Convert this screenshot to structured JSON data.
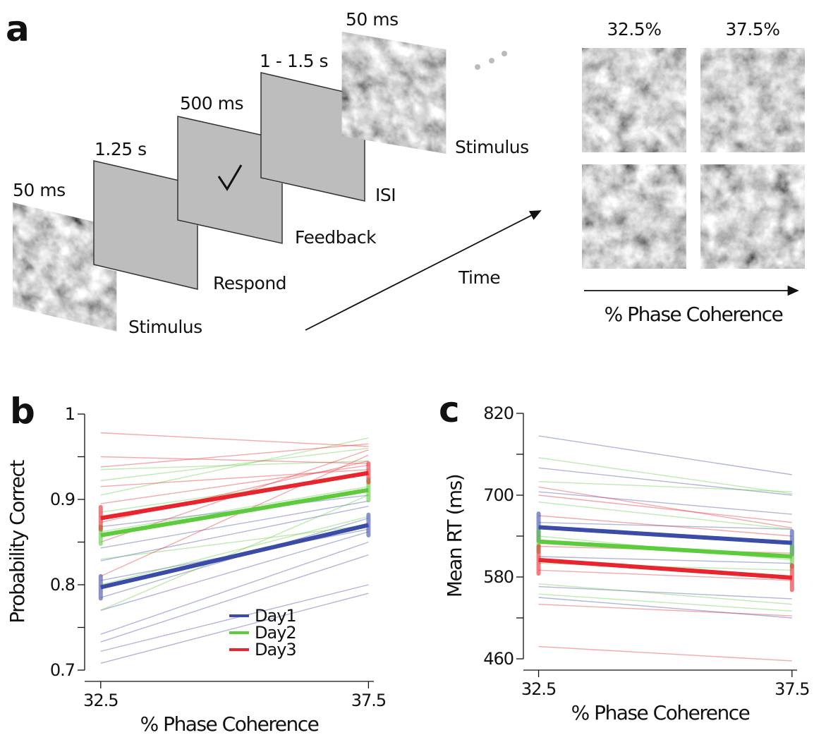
{
  "diagram": {
    "panel_label": "a",
    "frames": [
      {
        "duration": "50 ms",
        "label": "Stimulus"
      },
      {
        "duration": "1.25 s",
        "label": "Respond"
      },
      {
        "duration": "500 ms",
        "label": "Feedback"
      },
      {
        "duration": "1 - 1.5 s",
        "label": "ISI"
      },
      {
        "duration": "50 ms",
        "label": "Stimulus"
      }
    ],
    "time_label": "Time",
    "coherence_levels": [
      "32.5%",
      "37.5%"
    ],
    "coherence_axis": "% Phase Coherence"
  },
  "chart_data": [
    {
      "type": "line",
      "panel_label": "b",
      "ylabel": "Probability Correct",
      "xlabel": "% Phase Coherence",
      "x": [
        32.5,
        37.5
      ],
      "xlim": [
        32.2,
        37.6
      ],
      "xticks": [
        32.5,
        37.5
      ],
      "ylim": [
        0.7,
        1
      ],
      "yticks": [
        0.7,
        0.8,
        0.9,
        1
      ],
      "yminor": [
        0.75,
        0.85,
        0.95
      ],
      "legend": "lower right",
      "series": [
        {
          "name": "Day1",
          "color": "#3b4ba8",
          "values": [
            0.797,
            0.87
          ],
          "errors": [
            0.013,
            0.012
          ]
        },
        {
          "name": "Day2",
          "color": "#5ccb3c",
          "values": [
            0.858,
            0.911
          ],
          "errors": [
            0.01,
            0.012
          ]
        },
        {
          "name": "Day3",
          "color": "#e8252d",
          "values": [
            0.878,
            0.931
          ],
          "errors": [
            0.013,
            0.011
          ]
        }
      ],
      "subjects": [
        {
          "color": "#3b4ba8",
          "values": [
            0.708,
            0.79
          ]
        },
        {
          "color": "#3b4ba8",
          "values": [
            0.722,
            0.8
          ]
        },
        {
          "color": "#3b4ba8",
          "values": [
            0.733,
            0.835
          ]
        },
        {
          "color": "#3b4ba8",
          "values": [
            0.742,
            0.85
          ]
        },
        {
          "color": "#3b4ba8",
          "values": [
            0.77,
            0.862
          ]
        },
        {
          "color": "#3b4ba8",
          "values": [
            0.785,
            0.878
          ]
        },
        {
          "color": "#3b4ba8",
          "values": [
            0.805,
            0.865
          ]
        },
        {
          "color": "#3b4ba8",
          "values": [
            0.828,
            0.892
          ]
        },
        {
          "color": "#3b4ba8",
          "values": [
            0.843,
            0.898
          ]
        },
        {
          "color": "#3b4ba8",
          "values": [
            0.868,
            0.905
          ]
        },
        {
          "color": "#5ccb3c",
          "values": [
            0.77,
            0.905
          ]
        },
        {
          "color": "#5ccb3c",
          "values": [
            0.8,
            0.88
          ]
        },
        {
          "color": "#5ccb3c",
          "values": [
            0.83,
            0.87
          ]
        },
        {
          "color": "#5ccb3c",
          "values": [
            0.862,
            0.915
          ]
        },
        {
          "color": "#5ccb3c",
          "values": [
            0.885,
            0.93
          ]
        },
        {
          "color": "#5ccb3c",
          "values": [
            0.905,
            0.972
          ]
        },
        {
          "color": "#5ccb3c",
          "values": [
            0.922,
            0.96
          ]
        },
        {
          "color": "#5ccb3c",
          "values": [
            0.935,
            0.945
          ]
        },
        {
          "color": "#e8252d",
          "values": [
            0.81,
            0.952
          ]
        },
        {
          "color": "#e8252d",
          "values": [
            0.85,
            0.958
          ]
        },
        {
          "color": "#e8252d",
          "values": [
            0.873,
            0.945
          ]
        },
        {
          "color": "#e8252d",
          "values": [
            0.895,
            0.94
          ]
        },
        {
          "color": "#e8252d",
          "values": [
            0.915,
            0.935
          ]
        },
        {
          "color": "#e8252d",
          "values": [
            0.938,
            0.965
          ]
        },
        {
          "color": "#e8252d",
          "values": [
            0.95,
            0.942
          ]
        },
        {
          "color": "#e8252d",
          "values": [
            0.978,
            0.962
          ]
        }
      ]
    },
    {
      "type": "line",
      "panel_label": "c",
      "ylabel": "Mean RT (ms)",
      "xlabel": "% Phase Coherence",
      "x": [
        32.5,
        37.5
      ],
      "xlim": [
        32.2,
        37.6
      ],
      "xticks": [
        32.5,
        37.5
      ],
      "ylim": [
        460,
        820
      ],
      "yticks": [
        460,
        580,
        700,
        820
      ],
      "yminor": [
        520,
        640,
        760
      ],
      "series": [
        {
          "name": "Day1",
          "color": "#3b4ba8",
          "values": [
            653,
            630
          ],
          "errors": [
            20,
            17
          ]
        },
        {
          "name": "Day2",
          "color": "#5ccb3c",
          "values": [
            632,
            610
          ],
          "errors": [
            15,
            15
          ]
        },
        {
          "name": "Day3",
          "color": "#e8252d",
          "values": [
            605,
            579
          ],
          "errors": [
            20,
            18
          ]
        }
      ],
      "subjects": [
        {
          "color": "#3b4ba8",
          "values": [
            787,
            730
          ]
        },
        {
          "color": "#3b4ba8",
          "values": [
            740,
            700
          ]
        },
        {
          "color": "#3b4ba8",
          "values": [
            705,
            672
          ]
        },
        {
          "color": "#3b4ba8",
          "values": [
            660,
            650
          ]
        },
        {
          "color": "#3b4ba8",
          "values": [
            610,
            600
          ]
        },
        {
          "color": "#3b4ba8",
          "values": [
            566,
            548
          ]
        },
        {
          "color": "#3b4ba8",
          "values": [
            550,
            520
          ]
        },
        {
          "color": "#5ccb3c",
          "values": [
            755,
            702
          ]
        },
        {
          "color": "#5ccb3c",
          "values": [
            720,
            705
          ]
        },
        {
          "color": "#5ccb3c",
          "values": [
            690,
            650
          ]
        },
        {
          "color": "#5ccb3c",
          "values": [
            640,
            605
          ]
        },
        {
          "color": "#5ccb3c",
          "values": [
            600,
            590
          ]
        },
        {
          "color": "#5ccb3c",
          "values": [
            570,
            540
          ]
        },
        {
          "color": "#5ccb3c",
          "values": [
            555,
            530
          ]
        },
        {
          "color": "#e8252d",
          "values": [
            712,
            652
          ]
        },
        {
          "color": "#e8252d",
          "values": [
            700,
            660
          ]
        },
        {
          "color": "#e8252d",
          "values": [
            670,
            640
          ]
        },
        {
          "color": "#e8252d",
          "values": [
            625,
            615
          ]
        },
        {
          "color": "#e8252d",
          "values": [
            590,
            575
          ]
        },
        {
          "color": "#e8252d",
          "values": [
            540,
            523
          ]
        },
        {
          "color": "#e8252d",
          "values": [
            478,
            457
          ]
        }
      ]
    }
  ]
}
